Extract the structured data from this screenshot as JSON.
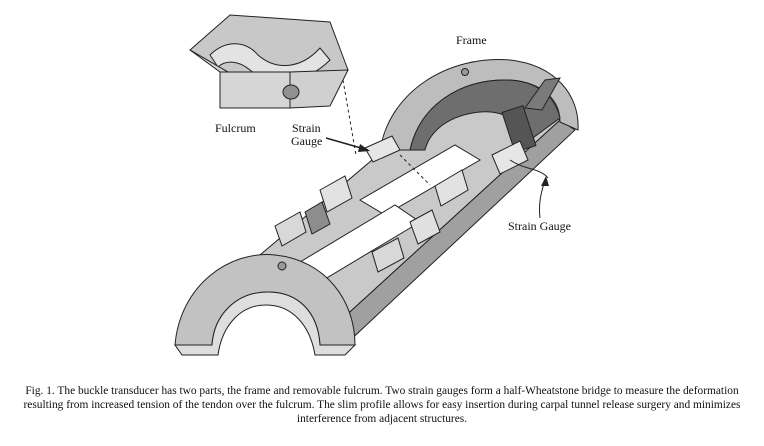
{
  "figure": {
    "labels": {
      "frame": "Frame",
      "fulcrum": "Fulcrum",
      "strain_gauge_left_line1": "Strain",
      "strain_gauge_left_line2": "Gauge",
      "strain_gauge_right": "Strain Gauge"
    },
    "colors": {
      "top_surface": "#c7c7c7",
      "side_surface": "#a9a9a9",
      "dark_surface": "#888888",
      "cut_face": "#d9d9d9",
      "outline": "#222222"
    }
  },
  "caption": "Fig. 1. The buckle transducer has two parts, the frame and removable fulcrum. Two strain gauges form a half-Wheatstone bridge to measure the deformation resulting from increased tension of the tendon over the fulcrum. The slim profile allows for easy insertion during carpal tunnel release surgery and minimizes interference from adjacent structures."
}
